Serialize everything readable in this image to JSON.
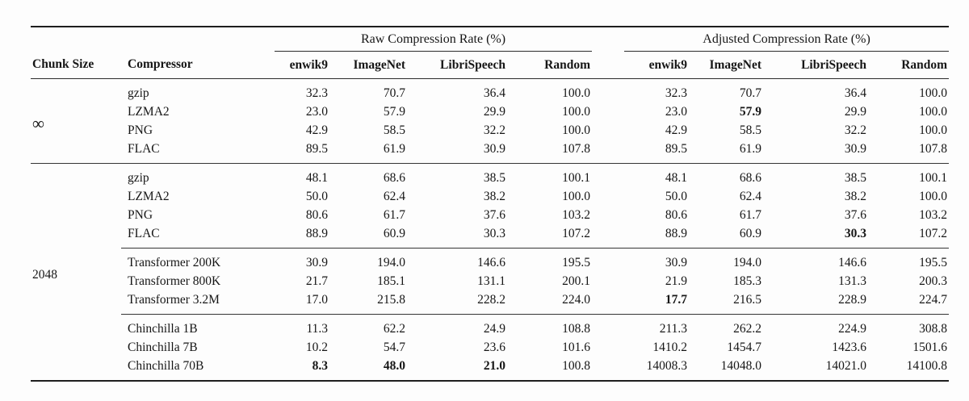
{
  "table": {
    "headers": {
      "chunk_size": "Chunk Size",
      "compressor": "Compressor",
      "raw_group": "Raw Compression Rate (%)",
      "adjusted_group": "Adjusted Compression Rate (%)",
      "datasets": [
        "enwik9",
        "ImageNet",
        "LibriSpeech",
        "Random"
      ]
    },
    "groups": [
      {
        "chunk_size": "∞",
        "subgroups": [
          {
            "rows": [
              {
                "compressor": "gzip",
                "cells": [
                  "32.3",
                  "70.7",
                  "36.4",
                  "100.0",
                  "32.3",
                  "70.7",
                  "36.4",
                  "100.0"
                ],
                "bold": []
              },
              {
                "compressor": "LZMA2",
                "cells": [
                  "23.0",
                  "57.9",
                  "29.9",
                  "100.0",
                  "23.0",
                  "57.9",
                  "29.9",
                  "100.0"
                ],
                "bold": [
                  5
                ]
              },
              {
                "compressor": "PNG",
                "cells": [
                  "42.9",
                  "58.5",
                  "32.2",
                  "100.0",
                  "42.9",
                  "58.5",
                  "32.2",
                  "100.0"
                ],
                "bold": []
              },
              {
                "compressor": "FLAC",
                "cells": [
                  "89.5",
                  "61.9",
                  "30.9",
                  "107.8",
                  "89.5",
                  "61.9",
                  "30.9",
                  "107.8"
                ],
                "bold": []
              }
            ]
          }
        ]
      },
      {
        "chunk_size": "2048",
        "subgroups": [
          {
            "rows": [
              {
                "compressor": "gzip",
                "cells": [
                  "48.1",
                  "68.6",
                  "38.5",
                  "100.1",
                  "48.1",
                  "68.6",
                  "38.5",
                  "100.1"
                ],
                "bold": []
              },
              {
                "compressor": "LZMA2",
                "cells": [
                  "50.0",
                  "62.4",
                  "38.2",
                  "100.0",
                  "50.0",
                  "62.4",
                  "38.2",
                  "100.0"
                ],
                "bold": []
              },
              {
                "compressor": "PNG",
                "cells": [
                  "80.6",
                  "61.7",
                  "37.6",
                  "103.2",
                  "80.6",
                  "61.7",
                  "37.6",
                  "103.2"
                ],
                "bold": []
              },
              {
                "compressor": "FLAC",
                "cells": [
                  "88.9",
                  "60.9",
                  "30.3",
                  "107.2",
                  "88.9",
                  "60.9",
                  "30.3",
                  "107.2"
                ],
                "bold": [
                  6
                ]
              }
            ]
          },
          {
            "rows": [
              {
                "compressor": "Transformer 200K",
                "cells": [
                  "30.9",
                  "194.0",
                  "146.6",
                  "195.5",
                  "30.9",
                  "194.0",
                  "146.6",
                  "195.5"
                ],
                "bold": []
              },
              {
                "compressor": "Transformer 800K",
                "cells": [
                  "21.7",
                  "185.1",
                  "131.1",
                  "200.1",
                  "21.9",
                  "185.3",
                  "131.3",
                  "200.3"
                ],
                "bold": []
              },
              {
                "compressor": "Transformer 3.2M",
                "cells": [
                  "17.0",
                  "215.8",
                  "228.2",
                  "224.0",
                  "17.7",
                  "216.5",
                  "228.9",
                  "224.7"
                ],
                "bold": [
                  4
                ]
              }
            ]
          },
          {
            "rows": [
              {
                "compressor": "Chinchilla 1B",
                "cells": [
                  "11.3",
                  "62.2",
                  "24.9",
                  "108.8",
                  "211.3",
                  "262.2",
                  "224.9",
                  "308.8"
                ],
                "bold": []
              },
              {
                "compressor": "Chinchilla 7B",
                "cells": [
                  "10.2",
                  "54.7",
                  "23.6",
                  "101.6",
                  "1410.2",
                  "1454.7",
                  "1423.6",
                  "1501.6"
                ],
                "bold": []
              },
              {
                "compressor": "Chinchilla 70B",
                "cells": [
                  "8.3",
                  "48.0",
                  "21.0",
                  "100.8",
                  "14008.3",
                  "14048.0",
                  "14021.0",
                  "14100.8"
                ],
                "bold": [
                  0,
                  1,
                  2
                ]
              }
            ]
          }
        ]
      }
    ]
  },
  "chart_data": {
    "type": "table",
    "columns": [
      "Chunk Size",
      "Compressor",
      "Raw enwik9",
      "Raw ImageNet",
      "Raw LibriSpeech",
      "Raw Random",
      "Adjusted enwik9",
      "Adjusted ImageNet",
      "Adjusted LibriSpeech",
      "Adjusted Random"
    ],
    "rows": [
      [
        "∞",
        "gzip",
        32.3,
        70.7,
        36.4,
        100.0,
        32.3,
        70.7,
        36.4,
        100.0
      ],
      [
        "∞",
        "LZMA2",
        23.0,
        57.9,
        29.9,
        100.0,
        23.0,
        57.9,
        29.9,
        100.0
      ],
      [
        "∞",
        "PNG",
        42.9,
        58.5,
        32.2,
        100.0,
        42.9,
        58.5,
        32.2,
        100.0
      ],
      [
        "∞",
        "FLAC",
        89.5,
        61.9,
        30.9,
        107.8,
        89.5,
        61.9,
        30.9,
        107.8
      ],
      [
        "2048",
        "gzip",
        48.1,
        68.6,
        38.5,
        100.1,
        48.1,
        68.6,
        38.5,
        100.1
      ],
      [
        "2048",
        "LZMA2",
        50.0,
        62.4,
        38.2,
        100.0,
        50.0,
        62.4,
        38.2,
        100.0
      ],
      [
        "2048",
        "PNG",
        80.6,
        61.7,
        37.6,
        103.2,
        80.6,
        61.7,
        37.6,
        103.2
      ],
      [
        "2048",
        "FLAC",
        88.9,
        60.9,
        30.3,
        107.2,
        88.9,
        60.9,
        30.3,
        107.2
      ],
      [
        "2048",
        "Transformer 200K",
        30.9,
        194.0,
        146.6,
        195.5,
        30.9,
        194.0,
        146.6,
        195.5
      ],
      [
        "2048",
        "Transformer 800K",
        21.7,
        185.1,
        131.1,
        200.1,
        21.9,
        185.3,
        131.3,
        200.3
      ],
      [
        "2048",
        "Transformer 3.2M",
        17.0,
        215.8,
        228.2,
        224.0,
        17.7,
        216.5,
        228.9,
        224.7
      ],
      [
        "2048",
        "Chinchilla 1B",
        11.3,
        62.2,
        24.9,
        108.8,
        211.3,
        262.2,
        224.9,
        308.8
      ],
      [
        "2048",
        "Chinchilla 7B",
        10.2,
        54.7,
        23.6,
        101.6,
        1410.2,
        1454.7,
        1423.6,
        1501.6
      ],
      [
        "2048",
        "Chinchilla 70B",
        8.3,
        48.0,
        21.0,
        100.8,
        14008.3,
        14048.0,
        14021.0,
        14100.8
      ]
    ]
  }
}
